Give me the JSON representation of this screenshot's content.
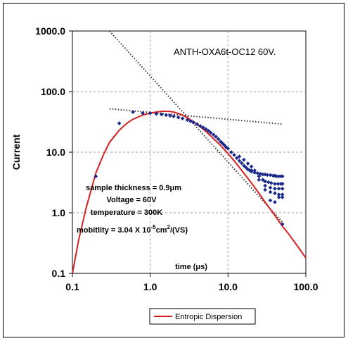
{
  "chart_data": {
    "type": "scatter",
    "title": "ANTH-OXA6t-OC12   60V.",
    "xlabel": "time (μs)",
    "ylabel": "Current",
    "x_scale": "log",
    "y_scale": "log",
    "xlim": [
      0.1,
      100.0
    ],
    "ylim": [
      0.1,
      1000.0
    ],
    "x_ticks": [
      "0.1",
      "1.0",
      "10.0",
      "100.0"
    ],
    "y_ticks": [
      "0.1",
      "1.0",
      "10.0",
      "100.0",
      "1000.0"
    ],
    "grid": true,
    "legend_position": "bottom-center",
    "colors": {
      "data": "#1a2a8c",
      "fit": "#d62020",
      "guide": "#333333"
    },
    "annotations": [
      "sample thickness = 0.9μm",
      "Voltage = 60V",
      "temperature = 300K",
      "mobitlity = 3.04 X 10-5cm2/(VS)"
    ],
    "mobility_parts": {
      "prefix": "mobitlity = 3.04 X 10",
      "exp1": "-5",
      "mid": "cm",
      "exp2": "2",
      "suffix": "/(VS)"
    },
    "series": [
      {
        "name": "",
        "kind": "points",
        "x": [
          0.2,
          0.4,
          0.6,
          0.8,
          1.0,
          1.2,
          1.4,
          1.6,
          1.8,
          2.0,
          2.3,
          2.6,
          3.0,
          3.3,
          3.6,
          4.0,
          4.4,
          4.8,
          5.2,
          5.6,
          6.0,
          6.5,
          7.0,
          7.5,
          8.0,
          8.5,
          9.0,
          9.5,
          10.0,
          11.0,
          12.0,
          13.0,
          14.0,
          15.0,
          16.0,
          17.0,
          18.0,
          19.0,
          20.0,
          22.0,
          24.0,
          26.0,
          28.0,
          30.0,
          32.0,
          35.0,
          38.0,
          40.0,
          42.0,
          45.0,
          48.0,
          50.0,
          14.0,
          16.0,
          18.0,
          20.0,
          22.0,
          25.0,
          28.0,
          30.0,
          33.0,
          36.0,
          40.0,
          44.0,
          48.0,
          50.0,
          20.0,
          25.0,
          30.0,
          35.0,
          40.0,
          45.0,
          50.0,
          30.0,
          35.0,
          40.0,
          45.0,
          50.0,
          35.0,
          40.0,
          45.0,
          50.0,
          50.0
        ],
        "y": [
          4.0,
          30.0,
          46.0,
          44.0,
          44.0,
          43.0,
          42.0,
          41.0,
          40.0,
          39.0,
          37.5,
          36.0,
          34.0,
          32.5,
          31.0,
          29.0,
          27.0,
          25.5,
          24.0,
          22.5,
          21.0,
          19.5,
          18.0,
          16.5,
          15.0,
          14.0,
          13.0,
          12.0,
          11.5,
          10.0,
          9.0,
          8.0,
          7.2,
          6.6,
          6.0,
          5.6,
          5.2,
          5.0,
          4.8,
          4.6,
          4.5,
          4.4,
          4.3,
          4.3,
          4.2,
          4.2,
          4.1,
          4.1,
          4.0,
          4.0,
          4.0,
          4.0,
          8.5,
          7.5,
          6.5,
          5.8,
          5.0,
          4.0,
          3.5,
          3.3,
          3.2,
          3.1,
          3.0,
          3.0,
          3.0,
          3.0,
          5.0,
          3.5,
          2.8,
          2.6,
          2.5,
          2.5,
          2.5,
          2.4,
          2.2,
          2.1,
          2.0,
          2.0,
          1.6,
          1.5,
          1.8,
          1.8,
          0.65
        ]
      },
      {
        "name": "Entropic Dispersion",
        "kind": "line",
        "x": [
          0.1,
          0.12,
          0.15,
          0.2,
          0.25,
          0.3,
          0.4,
          0.5,
          0.6,
          0.8,
          1.0,
          1.2,
          1.5,
          1.8,
          2.0,
          2.5,
          3.0,
          4.0,
          5.0,
          6.0,
          8.0,
          10.0,
          12.0,
          15.0,
          20.0,
          25.0,
          30.0,
          40.0,
          50.0,
          60.0,
          80.0,
          100.0
        ],
        "y": [
          0.1,
          0.35,
          1.2,
          4.5,
          9.0,
          14.5,
          23.0,
          30.0,
          35.0,
          41.0,
          44.0,
          46.0,
          47.5,
          47.0,
          46.0,
          42.0,
          37.0,
          29.0,
          23.0,
          18.5,
          13.0,
          9.5,
          7.2,
          5.0,
          3.1,
          2.1,
          1.5,
          0.9,
          0.6,
          0.45,
          0.27,
          0.18
        ]
      },
      {
        "name": "",
        "kind": "dotted-line",
        "x": [
          0.3,
          50.0
        ],
        "y": [
          1000.0,
          0.7
        ]
      },
      {
        "name": "",
        "kind": "dotted-line",
        "x": [
          0.3,
          50.0
        ],
        "y": [
          52.0,
          29.0
        ]
      }
    ]
  }
}
